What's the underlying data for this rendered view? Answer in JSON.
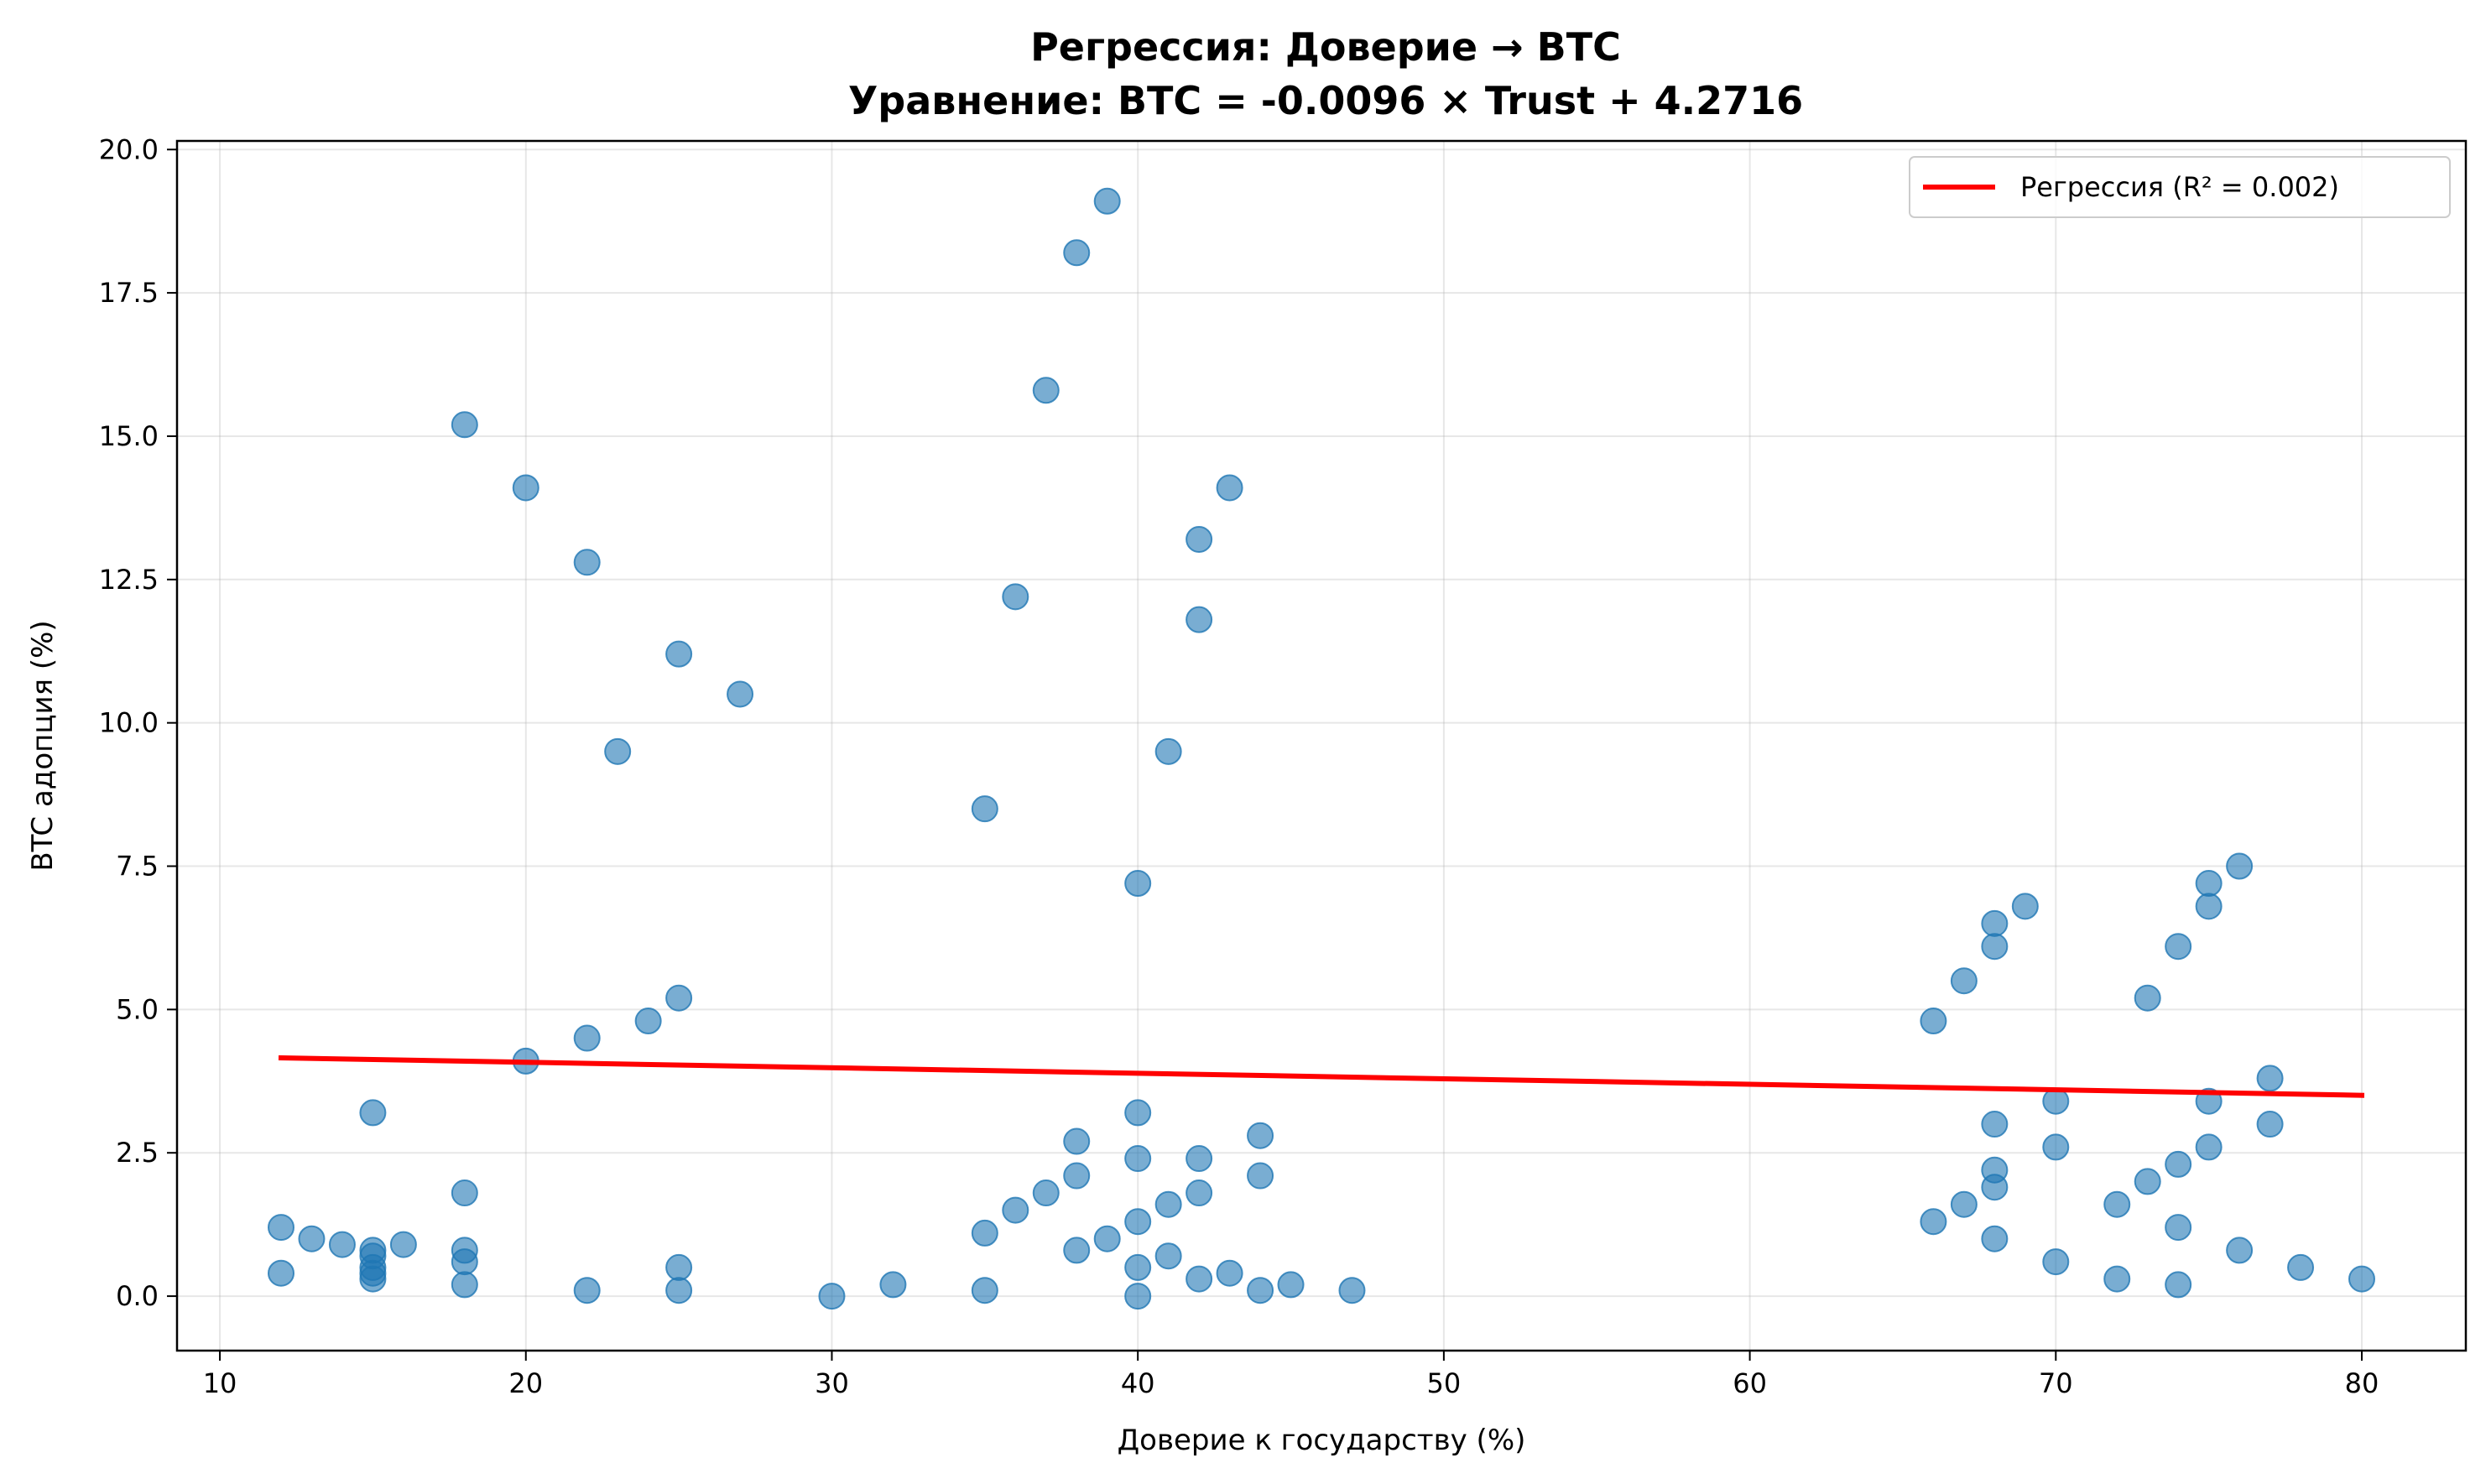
{
  "chart_data": {
    "type": "scatter",
    "title": "Регрессия: Доверие → BTC",
    "subtitle": "Уравнение: BTC = -0.0096 × Trust + 4.2716",
    "xlabel": "Доверие к государству (%)",
    "ylabel": "BTC адопция (%)",
    "xlim": [
      8.6,
      83.4
    ],
    "ylim": [
      -0.95,
      20.15
    ],
    "xticks": [
      10,
      20,
      30,
      40,
      50,
      60,
      70,
      80
    ],
    "xtick_labels": [
      "10",
      "20",
      "30",
      "40",
      "50",
      "60",
      "70",
      "80"
    ],
    "yticks": [
      0,
      2.5,
      5,
      7.5,
      10,
      12.5,
      15,
      17.5,
      20
    ],
    "ytick_labels": [
      "0.0",
      "2.5",
      "5.0",
      "7.5",
      "10.0",
      "12.5",
      "15.0",
      "17.5",
      "20.0"
    ],
    "grid": true,
    "legend_position": "top-right",
    "colors": {
      "points": "#1f77b4",
      "regression": "#ff0000"
    },
    "points": [
      [
        12,
        1.2
      ],
      [
        12,
        0.4
      ],
      [
        13,
        1.0
      ],
      [
        14,
        0.9
      ],
      [
        15,
        3.2
      ],
      [
        15,
        0.8
      ],
      [
        15,
        0.7
      ],
      [
        15,
        0.5
      ],
      [
        15,
        0.4
      ],
      [
        15,
        0.3
      ],
      [
        16,
        0.9
      ],
      [
        18,
        15.2
      ],
      [
        18,
        1.8
      ],
      [
        18,
        0.8
      ],
      [
        18,
        0.6
      ],
      [
        18,
        0.2
      ],
      [
        20,
        14.1
      ],
      [
        20,
        4.1
      ],
      [
        22,
        12.8
      ],
      [
        22,
        4.5
      ],
      [
        22,
        0.1
      ],
      [
        23,
        9.5
      ],
      [
        24,
        4.8
      ],
      [
        25,
        11.2
      ],
      [
        25,
        5.2
      ],
      [
        25,
        0.5
      ],
      [
        25,
        0.1
      ],
      [
        27,
        10.5
      ],
      [
        30,
        0.0
      ],
      [
        32,
        0.2
      ],
      [
        35,
        8.5
      ],
      [
        35,
        1.1
      ],
      [
        35,
        0.1
      ],
      [
        36,
        12.2
      ],
      [
        36,
        1.5
      ],
      [
        37,
        15.8
      ],
      [
        37,
        1.8
      ],
      [
        38,
        18.2
      ],
      [
        38,
        2.7
      ],
      [
        38,
        2.1
      ],
      [
        38,
        0.8
      ],
      [
        39,
        19.1
      ],
      [
        39,
        1.0
      ],
      [
        40,
        7.2
      ],
      [
        40,
        3.2
      ],
      [
        40,
        2.4
      ],
      [
        40,
        1.3
      ],
      [
        40,
        0.5
      ],
      [
        40,
        0.0
      ],
      [
        41,
        9.5
      ],
      [
        41,
        1.6
      ],
      [
        41,
        0.7
      ],
      [
        42,
        13.2
      ],
      [
        42,
        11.8
      ],
      [
        42,
        2.4
      ],
      [
        42,
        1.8
      ],
      [
        42,
        0.3
      ],
      [
        43,
        14.1
      ],
      [
        43,
        0.4
      ],
      [
        44,
        2.8
      ],
      [
        44,
        2.1
      ],
      [
        44,
        0.1
      ],
      [
        45,
        0.2
      ],
      [
        47,
        0.1
      ],
      [
        66,
        4.8
      ],
      [
        66,
        1.3
      ],
      [
        67,
        5.5
      ],
      [
        67,
        1.6
      ],
      [
        68,
        6.5
      ],
      [
        68,
        6.1
      ],
      [
        68,
        3.0
      ],
      [
        68,
        2.2
      ],
      [
        68,
        1.9
      ],
      [
        68,
        1.0
      ],
      [
        69,
        6.8
      ],
      [
        70,
        3.4
      ],
      [
        70,
        2.6
      ],
      [
        70,
        0.6
      ],
      [
        72,
        1.6
      ],
      [
        72,
        0.3
      ],
      [
        73,
        5.2
      ],
      [
        73,
        2.0
      ],
      [
        74,
        6.1
      ],
      [
        74,
        2.3
      ],
      [
        74,
        1.2
      ],
      [
        74,
        0.2
      ],
      [
        75,
        7.2
      ],
      [
        75,
        6.8
      ],
      [
        75,
        3.4
      ],
      [
        75,
        2.6
      ],
      [
        76,
        7.5
      ],
      [
        76,
        0.8
      ],
      [
        77,
        3.8
      ],
      [
        77,
        3.0
      ],
      [
        78,
        0.5
      ],
      [
        80,
        0.3
      ]
    ],
    "regression": {
      "slope": -0.0096,
      "intercept": 4.2716,
      "x_range": [
        12,
        80
      ],
      "label": "Регрессия (R² = 0.002)"
    }
  }
}
